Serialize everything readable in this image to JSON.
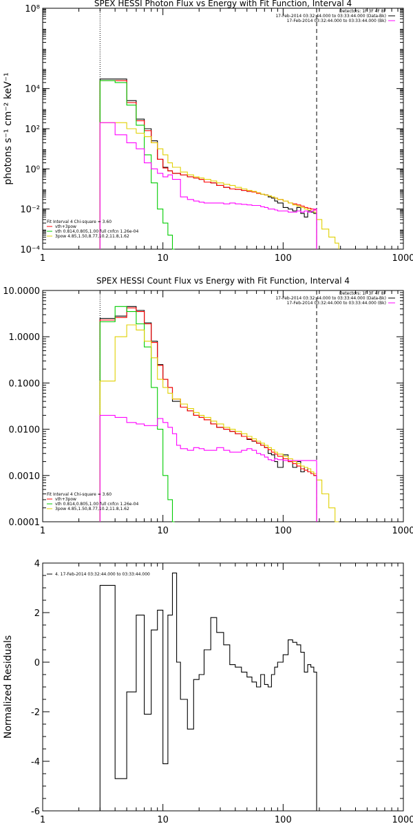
{
  "chart_data": [
    {
      "type": "line",
      "title": "SPEX HESSI Photon Flux vs Energy with Fit Function, Interval 4",
      "ylabel": "photons s⁻¹ cm⁻² keV⁻¹",
      "xlabel": "",
      "xscale": "log",
      "yscale": "log",
      "xlim": [
        1,
        1000
      ],
      "ylim": [
        0.0001,
        100000000
      ],
      "x_ticks": [
        "1",
        "10",
        "100",
        "1000"
      ],
      "y_ticks": [
        {
          "value": 0.0001,
          "label": "10⁻⁴"
        },
        {
          "value": 0.01,
          "label": "10⁻²"
        },
        {
          "value": 1,
          "label": "10⁰"
        },
        {
          "value": 100,
          "label": "10²"
        },
        {
          "value": 10000,
          "label": "10⁴"
        },
        {
          "value": 100000000,
          "label": "10⁸"
        }
      ],
      "header": [
        "Detectors: 1F 3F 4F 8F",
        "17-Feb-2014 03:32:44.000 to 03:33:44.000 (Data-Bk)",
        "17-Feb-2014 03:32:44.000 to 03:33:44.000 (Bk)"
      ],
      "header_colors": [
        "#000000",
        "#000000",
        "#ff00ff"
      ],
      "legend": [
        "Fit Interval 4   Chi-square = 3.60",
        "vth+3pow",
        "vth 0.814,0.805,1.00  full cnfcn 1.26e-04",
        "3pow 4.85,1.50,8.77,10.2,11.8,1.62"
      ],
      "legend_colors": [
        "#000000",
        "#ff0000",
        "#00cc00",
        "#e0d000"
      ],
      "vlines": [
        {
          "x": 3,
          "style": "dotted"
        },
        {
          "x": 190,
          "style": "dashed"
        }
      ],
      "series": [
        {
          "color": "#000000",
          "edges": [
            3,
            4,
            5,
            6,
            7,
            8,
            9,
            10,
            11,
            12,
            14,
            16,
            18,
            20,
            22,
            25,
            28,
            32,
            36,
            40,
            45,
            50,
            55,
            60,
            65,
            70,
            75,
            80,
            85,
            90,
            100,
            110,
            120,
            130,
            140,
            150,
            160,
            170,
            180,
            190
          ],
          "values": [
            30000,
            30000,
            2500,
            300,
            100,
            25,
            3,
            1.2,
            0.8,
            0.6,
            0.5,
            0.4,
            0.35,
            0.3,
            0.22,
            0.2,
            0.15,
            0.12,
            0.1,
            0.095,
            0.085,
            0.075,
            0.07,
            0.06,
            0.055,
            0.05,
            0.04,
            0.035,
            0.025,
            0.02,
            0.012,
            0.01,
            0.008,
            0.012,
            0.006,
            0.004,
            0.008,
            0.007,
            0.006
          ]
        },
        {
          "color": "#ff0000",
          "edges": [
            3,
            4,
            5,
            6,
            7,
            8,
            9,
            10,
            11,
            12,
            14,
            16,
            18,
            20,
            22,
            25,
            28,
            32,
            36,
            40,
            45,
            50,
            55,
            60,
            65,
            70,
            75,
            80,
            85,
            90,
            100,
            110,
            120,
            130,
            140,
            150,
            160,
            170,
            180,
            190
          ],
          "values": [
            25000,
            25000,
            2000,
            250,
            80,
            20,
            3,
            1.1,
            0.8,
            0.6,
            0.5,
            0.4,
            0.35,
            0.3,
            0.22,
            0.2,
            0.15,
            0.12,
            0.1,
            0.095,
            0.085,
            0.075,
            0.07,
            0.06,
            0.055,
            0.05,
            0.045,
            0.04,
            0.035,
            0.03,
            0.025,
            0.02,
            0.018,
            0.016,
            0.014,
            0.012,
            0.011,
            0.01,
            0.009
          ]
        },
        {
          "color": "#00cc00",
          "edges": [
            3,
            4,
            5,
            6,
            7,
            8,
            9,
            10,
            11,
            12,
            12.5
          ],
          "values": [
            25000,
            20000,
            1500,
            150,
            5,
            0.2,
            0.01,
            0.002,
            0.0005,
            0.0001
          ]
        },
        {
          "color": "#e0d000",
          "edges": [
            3,
            4,
            5,
            6,
            7,
            8,
            9,
            10,
            11,
            12,
            14,
            16,
            18,
            20,
            22,
            25,
            28,
            32,
            36,
            40,
            45,
            50,
            55,
            60,
            65,
            70,
            75,
            80,
            85,
            90,
            100,
            110,
            120,
            130,
            140,
            150,
            160,
            170,
            180,
            190,
            210,
            240,
            270,
            290
          ],
          "values": [
            200,
            200,
            100,
            60,
            40,
            20,
            10,
            5,
            2,
            1.2,
            0.7,
            0.5,
            0.4,
            0.35,
            0.3,
            0.25,
            0.2,
            0.17,
            0.15,
            0.12,
            0.1,
            0.085,
            0.075,
            0.065,
            0.055,
            0.05,
            0.045,
            0.04,
            0.035,
            0.03,
            0.025,
            0.02,
            0.016,
            0.014,
            0.012,
            0.01,
            0.009,
            0.008,
            0.007,
            0.003,
            0.001,
            0.0004,
            0.0002
          ]
        },
        {
          "color": "#ff00ff",
          "edges": [
            3,
            4,
            5,
            6,
            7,
            8,
            9,
            10,
            11,
            12,
            13,
            14,
            16,
            18,
            20,
            22,
            25,
            28,
            32,
            36,
            40,
            45,
            50,
            55,
            60,
            65,
            70,
            75,
            80,
            85,
            90,
            100,
            110,
            120,
            130,
            140,
            150,
            160,
            170,
            180,
            190
          ],
          "values": [
            200,
            50,
            20,
            10,
            2,
            1,
            0.6,
            0.4,
            0.5,
            0.3,
            0.3,
            0.04,
            0.03,
            0.025,
            0.022,
            0.02,
            0.02,
            0.02,
            0.018,
            0.02,
            0.018,
            0.017,
            0.016,
            0.015,
            0.015,
            0.013,
            0.012,
            0.01,
            0.01,
            0.009,
            0.008,
            0.008,
            0.007,
            0.007,
            0.008,
            0.007,
            0.008,
            0.007,
            0.008,
            0.01
          ]
        }
      ]
    },
    {
      "type": "line",
      "title": "SPEX HESSI Count Flux vs Energy with Fit Function, Interval 4",
      "ylabel": "",
      "xlabel": "",
      "xscale": "log",
      "yscale": "log",
      "xlim": [
        1,
        1000
      ],
      "ylim": [
        0.0001,
        10
      ],
      "x_ticks": [
        "1",
        "10",
        "100",
        "1000"
      ],
      "y_ticks": [
        {
          "value": 0.0001,
          "label": "0.0001"
        },
        {
          "value": 0.001,
          "label": "0.0010"
        },
        {
          "value": 0.01,
          "label": "0.0100"
        },
        {
          "value": 0.1,
          "label": "0.1000"
        },
        {
          "value": 1,
          "label": "1.0000"
        },
        {
          "value": 10,
          "label": "10.0000"
        }
      ],
      "header": [
        "Detectors: 1F 3F 4F 8F",
        "17-Feb-2014 03:32:44.000 to 03:33:44.000 (Data-Bk)",
        "17-Feb-2014 03:32:44.000 to 03:33:44.000 (Bk)"
      ],
      "header_colors": [
        "#000000",
        "#000000",
        "#ff00ff"
      ],
      "legend": [
        "Fit Interval 4   Chi-square = 3.60",
        "vth+3pow",
        "vth 0.814,0.805,1.00  full cnfcn 1.26e-04",
        "3pow 4.85,1.50,8.77,10.2,11.8,1.62"
      ],
      "legend_colors": [
        "#000000",
        "#ff0000",
        "#00cc00",
        "#e0d000"
      ],
      "vlines": [
        {
          "x": 3,
          "style": "dotted"
        },
        {
          "x": 190,
          "style": "dashed"
        }
      ],
      "series": [
        {
          "color": "#000000",
          "edges": [
            3,
            4,
            5,
            6,
            7,
            8,
            9,
            10,
            11,
            12,
            14,
            16,
            18,
            20,
            22,
            25,
            28,
            32,
            36,
            40,
            45,
            50,
            55,
            60,
            65,
            70,
            75,
            80,
            85,
            90,
            100,
            110,
            120,
            130,
            140,
            150,
            160,
            170,
            180,
            190
          ],
          "values": [
            2.5,
            2.8,
            4.5,
            3.7,
            2,
            0.8,
            0.25,
            0.12,
            0.08,
            0.04,
            0.03,
            0.025,
            0.02,
            0.018,
            0.016,
            0.013,
            0.011,
            0.01,
            0.009,
            0.008,
            0.007,
            0.006,
            0.0055,
            0.005,
            0.0045,
            0.004,
            0.003,
            0.0028,
            0.002,
            0.0015,
            0.0028,
            0.002,
            0.0015,
            0.002,
            0.0012,
            0.0015,
            0.0012,
            0.0011,
            0.001
          ]
        },
        {
          "color": "#ff0000",
          "edges": [
            3,
            4,
            5,
            6,
            7,
            8,
            9,
            10,
            11,
            12,
            14,
            16,
            18,
            20,
            22,
            25,
            28,
            32,
            36,
            40,
            45,
            50,
            55,
            60,
            65,
            70,
            75,
            80,
            85,
            90,
            100,
            110,
            120,
            130,
            140,
            150,
            160,
            170,
            180,
            190
          ],
          "values": [
            2.3,
            2.6,
            4.2,
            3.5,
            1.9,
            0.75,
            0.24,
            0.12,
            0.08,
            0.045,
            0.03,
            0.025,
            0.02,
            0.018,
            0.016,
            0.013,
            0.011,
            0.01,
            0.009,
            0.008,
            0.007,
            0.0062,
            0.0056,
            0.005,
            0.0045,
            0.004,
            0.0036,
            0.0032,
            0.0029,
            0.0026,
            0.0023,
            0.002,
            0.0018,
            0.0016,
            0.0014,
            0.0013,
            0.0012,
            0.0011,
            0.001
          ]
        },
        {
          "color": "#00cc00",
          "edges": [
            3,
            4,
            5,
            6,
            7,
            8,
            9,
            10,
            11,
            12,
            12.5
          ],
          "values": [
            2.1,
            4.5,
            3.5,
            1.9,
            0.6,
            0.08,
            0.01,
            0.001,
            0.0003,
            0.0001
          ]
        },
        {
          "color": "#e0d000",
          "edges": [
            3,
            4,
            5,
            6,
            7,
            8,
            9,
            10,
            11,
            12,
            14,
            16,
            18,
            20,
            22,
            25,
            28,
            32,
            36,
            40,
            45,
            50,
            55,
            60,
            65,
            70,
            75,
            80,
            85,
            90,
            100,
            110,
            120,
            130,
            140,
            150,
            160,
            170,
            180,
            190,
            210,
            240,
            270,
            290
          ],
          "values": [
            0.11,
            1,
            1.8,
            1.4,
            0.8,
            0.35,
            0.12,
            0.08,
            0.06,
            0.045,
            0.035,
            0.028,
            0.023,
            0.02,
            0.018,
            0.015,
            0.013,
            0.011,
            0.01,
            0.009,
            0.008,
            0.007,
            0.0062,
            0.0055,
            0.005,
            0.0045,
            0.004,
            0.0036,
            0.0032,
            0.0029,
            0.0026,
            0.0023,
            0.002,
            0.0018,
            0.0016,
            0.0015,
            0.0014,
            0.0012,
            0.0011,
            0.0008,
            0.0004,
            0.0002,
            0.0001
          ]
        },
        {
          "color": "#ff00ff",
          "edges": [
            3,
            4,
            5,
            6,
            7,
            8,
            9,
            10,
            11,
            12,
            13,
            14,
            16,
            18,
            20,
            22,
            25,
            28,
            32,
            36,
            40,
            45,
            50,
            55,
            60,
            65,
            70,
            75,
            80,
            85,
            90,
            100,
            110,
            120,
            130,
            140,
            150,
            160,
            170,
            180,
            190
          ],
          "values": [
            0.02,
            0.018,
            0.014,
            0.013,
            0.012,
            0.012,
            0.017,
            0.014,
            0.011,
            0.008,
            0.0045,
            0.0038,
            0.0035,
            0.004,
            0.0038,
            0.0035,
            0.0035,
            0.004,
            0.0035,
            0.0032,
            0.0032,
            0.0035,
            0.0038,
            0.0035,
            0.003,
            0.0028,
            0.0025,
            0.0022,
            0.0021,
            0.0023,
            0.0022,
            0.0021,
            0.0021,
            0.0021,
            0.0021,
            0.0021,
            0.0021,
            0.0021,
            0.0021,
            0.0021
          ]
        }
      ]
    },
    {
      "type": "line",
      "title": "",
      "ylabel": "Normalized Residuals",
      "xlabel": "",
      "xscale": "log",
      "yscale": "linear",
      "xlim": [
        1,
        1000
      ],
      "ylim": [
        -6,
        4
      ],
      "x_ticks": [
        "1",
        "10",
        "100",
        "1000"
      ],
      "y_ticks": [
        {
          "value": -6,
          "label": "-6"
        },
        {
          "value": -4,
          "label": "-4"
        },
        {
          "value": -2,
          "label": "-2"
        },
        {
          "value": 0,
          "label": "0"
        },
        {
          "value": 2,
          "label": "2"
        },
        {
          "value": 4,
          "label": "4"
        }
      ],
      "header": [],
      "legend": [
        "4. 17-Feb-2014 03:32:44.000 to 03:33:44.000"
      ],
      "legend_colors": [
        "#000000"
      ],
      "vlines": [],
      "series": [
        {
          "color": "#000000",
          "edges": [
            3,
            4,
            5,
            6,
            7,
            8,
            9,
            10,
            11,
            12,
            13,
            14,
            16,
            18,
            20,
            22,
            25,
            28,
            32,
            36,
            40,
            45,
            50,
            55,
            60,
            65,
            70,
            75,
            80,
            85,
            90,
            100,
            110,
            120,
            130,
            140,
            150,
            160,
            170,
            180,
            190
          ],
          "values": [
            3.1,
            -4.7,
            -1.2,
            1.9,
            -2.1,
            1.3,
            2.1,
            -4.1,
            1.9,
            3.6,
            0,
            -1.5,
            -2.7,
            -0.7,
            -0.5,
            0.5,
            1.8,
            1.2,
            0.7,
            -0.1,
            -0.2,
            -0.4,
            -0.6,
            -0.8,
            -1,
            -0.5,
            -0.9,
            -1,
            -0.5,
            -0.2,
            0,
            0.3,
            0.9,
            0.8,
            0.7,
            0.4,
            -0.4,
            -0.1,
            -0.2,
            -0.4
          ]
        }
      ]
    }
  ]
}
